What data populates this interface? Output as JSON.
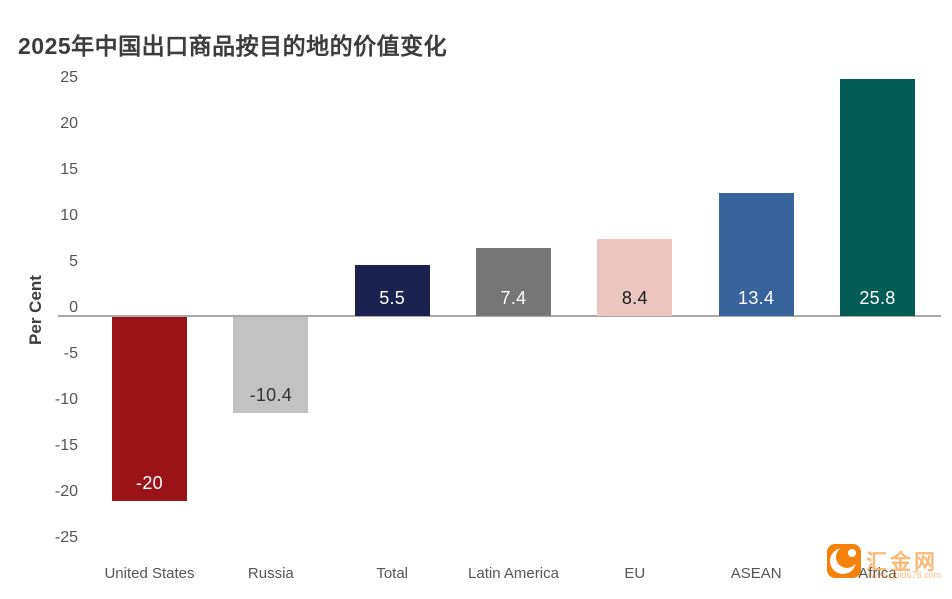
{
  "chart_data": {
    "type": "bar",
    "title": "2025年中国出口商品按目的地的价值变化",
    "xlabel": "",
    "ylabel": "Per Cent",
    "ylim": [
      -25,
      25
    ],
    "y_ticks": [
      25,
      20,
      15,
      10,
      5,
      0,
      -5,
      -10,
      -15,
      -20,
      -25
    ],
    "grid": false,
    "legend": "none",
    "categories": [
      "United States",
      "Russia",
      "Total",
      "Latin America",
      "EU",
      "ASEAN",
      "Africa"
    ],
    "values": [
      -20,
      -10.4,
      5.5,
      7.4,
      8.4,
      13.4,
      25.8
    ],
    "value_labels": [
      "-20",
      "-10.4",
      "5.5",
      "7.4",
      "8.4",
      "13.4",
      "25.8"
    ],
    "bar_colors": [
      "#991318",
      "#C2C2C2",
      "#1B2150",
      "#767676",
      "#EBC6C1",
      "#38649C",
      "#055C55"
    ],
    "value_label_colors": [
      "#FFFFFF",
      "#333333",
      "#FFFFFF",
      "#FFFFFF",
      "#1A1A1A",
      "#FFFFFF",
      "#FFFFFF"
    ],
    "title_color": "#3C3C3C",
    "axis_text_color": "#555555",
    "zero_line_color": "#A8A8A8"
  },
  "watermark": {
    "site_name": "汇金网",
    "site_url": "www.gold678.com",
    "icon": "huijin-crescent-logo",
    "accent_color": "#F5820B"
  }
}
